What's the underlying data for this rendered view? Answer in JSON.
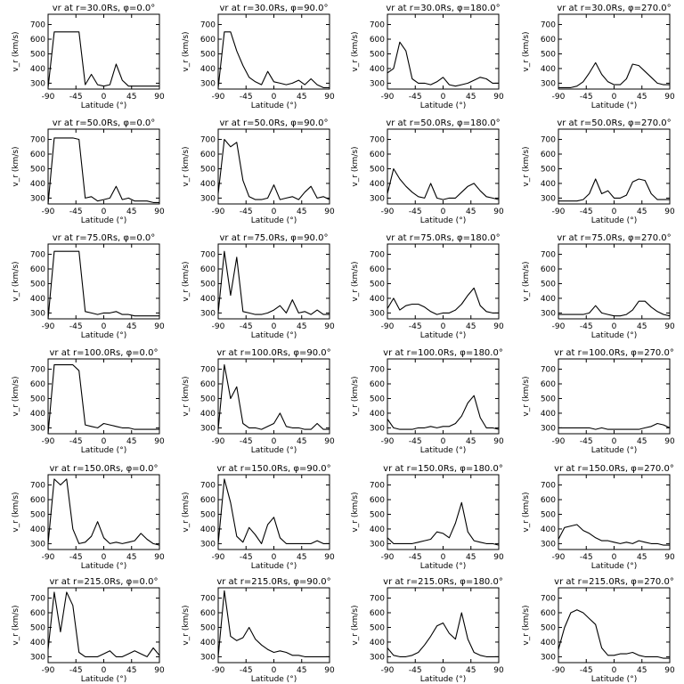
{
  "chart_data": {
    "type": "line",
    "xlabel": "Latitude (°)",
    "ylabel": "v_r (km/s)",
    "xlim": [
      -90,
      90
    ],
    "xticks": [
      -90,
      -45,
      0,
      45,
      90
    ],
    "lat": [
      -90,
      -80,
      -70,
      -60,
      -50,
      -40,
      -30,
      -20,
      -10,
      0,
      10,
      20,
      30,
      40,
      50,
      60,
      70,
      80,
      90
    ],
    "panels": [
      {
        "title": "vr at r=30.0Rs, φ=0.0°",
        "ylim": [
          260,
          770
        ],
        "yticks": [
          300,
          400,
          500,
          600,
          700
        ],
        "values": [
          270,
          650,
          650,
          650,
          650,
          650,
          290,
          360,
          290,
          280,
          290,
          430,
          320,
          280,
          280,
          280,
          280,
          280,
          280
        ]
      },
      {
        "title": "vr at r=30.0Rs, φ=90.0°",
        "ylim": [
          260,
          770
        ],
        "yticks": [
          300,
          400,
          500,
          600,
          700
        ],
        "values": [
          270,
          650,
          650,
          520,
          420,
          340,
          310,
          290,
          380,
          310,
          300,
          290,
          300,
          320,
          290,
          330,
          290,
          270,
          270
        ]
      },
      {
        "title": "vr at r=30.0Rs, φ=180.0°",
        "ylim": [
          260,
          770
        ],
        "yticks": [
          300,
          400,
          500,
          600,
          700
        ],
        "values": [
          370,
          400,
          580,
          520,
          330,
          300,
          300,
          290,
          310,
          340,
          290,
          280,
          290,
          300,
          320,
          340,
          330,
          300,
          300
        ]
      },
      {
        "title": "vr at r=30.0Rs, φ=270.0°",
        "ylim": [
          260,
          770
        ],
        "yticks": [
          300,
          400,
          500,
          600,
          700
        ],
        "values": [
          270,
          270,
          270,
          280,
          310,
          370,
          440,
          360,
          310,
          290,
          290,
          330,
          430,
          420,
          380,
          340,
          300,
          290,
          290
        ]
      },
      {
        "title": "vr at r=50.0Rs, φ=0.0°",
        "ylim": [
          260,
          770
        ],
        "yticks": [
          300,
          400,
          500,
          600,
          700
        ],
        "values": [
          250,
          710,
          710,
          710,
          710,
          700,
          300,
          310,
          280,
          290,
          300,
          380,
          290,
          300,
          280,
          280,
          280,
          270,
          270
        ]
      },
      {
        "title": "vr at r=50.0Rs, φ=90.0°",
        "ylim": [
          260,
          770
        ],
        "yticks": [
          300,
          400,
          500,
          600,
          700
        ],
        "values": [
          330,
          700,
          650,
          680,
          420,
          310,
          290,
          290,
          300,
          390,
          290,
          300,
          310,
          290,
          340,
          380,
          300,
          310,
          290
        ]
      },
      {
        "title": "vr at r=50.0Rs, φ=180.0°",
        "ylim": [
          260,
          770
        ],
        "yticks": [
          300,
          400,
          500,
          600,
          700
        ],
        "values": [
          330,
          500,
          430,
          380,
          340,
          310,
          300,
          400,
          300,
          290,
          300,
          300,
          340,
          380,
          400,
          350,
          310,
          300,
          290
        ]
      },
      {
        "title": "vr at r=50.0Rs, φ=270.0°",
        "ylim": [
          260,
          770
        ],
        "yticks": [
          300,
          400,
          500,
          600,
          700
        ],
        "values": [
          280,
          280,
          280,
          280,
          290,
          330,
          430,
          330,
          350,
          300,
          300,
          320,
          410,
          430,
          420,
          330,
          290,
          290,
          290
        ]
      },
      {
        "title": "vr at r=75.0Rs, φ=0.0°",
        "ylim": [
          260,
          770
        ],
        "yticks": [
          300,
          400,
          500,
          600,
          700
        ],
        "values": [
          250,
          720,
          720,
          720,
          720,
          720,
          310,
          300,
          290,
          300,
          300,
          310,
          290,
          290,
          280,
          280,
          280,
          280,
          280
        ]
      },
      {
        "title": "vr at r=75.0Rs, φ=90.0°",
        "ylim": [
          260,
          770
        ],
        "yticks": [
          300,
          400,
          500,
          600,
          700
        ],
        "values": [
          300,
          720,
          420,
          680,
          310,
          300,
          290,
          290,
          300,
          320,
          350,
          300,
          390,
          300,
          310,
          290,
          320,
          290,
          290
        ]
      },
      {
        "title": "vr at r=75.0Rs, φ=180.0°",
        "ylim": [
          260,
          770
        ],
        "yticks": [
          300,
          400,
          500,
          600,
          700
        ],
        "values": [
          330,
          400,
          320,
          350,
          360,
          360,
          340,
          310,
          290,
          300,
          300,
          320,
          360,
          420,
          470,
          350,
          310,
          300,
          300
        ]
      },
      {
        "title": "vr at r=75.0Rs, φ=270.0°",
        "ylim": [
          260,
          770
        ],
        "yticks": [
          300,
          400,
          500,
          600,
          700
        ],
        "values": [
          290,
          290,
          290,
          290,
          290,
          300,
          350,
          300,
          290,
          280,
          280,
          290,
          320,
          380,
          380,
          340,
          310,
          290,
          280
        ]
      },
      {
        "title": "vr at r=100.0Rs, φ=0.0°",
        "ylim": [
          260,
          770
        ],
        "yticks": [
          300,
          400,
          500,
          600,
          700
        ],
        "values": [
          250,
          730,
          730,
          730,
          730,
          690,
          320,
          310,
          300,
          330,
          320,
          310,
          300,
          300,
          290,
          290,
          290,
          290,
          290
        ]
      },
      {
        "title": "vr at r=100.0Rs, φ=90.0°",
        "ylim": [
          260,
          770
        ],
        "yticks": [
          300,
          400,
          500,
          600,
          700
        ],
        "values": [
          290,
          730,
          500,
          580,
          330,
          300,
          300,
          290,
          310,
          330,
          400,
          310,
          300,
          300,
          290,
          290,
          330,
          290,
          290
        ]
      },
      {
        "title": "vr at r=100.0Rs, φ=180.0°",
        "ylim": [
          260,
          770
        ],
        "yticks": [
          300,
          400,
          500,
          600,
          700
        ],
        "values": [
          360,
          300,
          290,
          290,
          290,
          300,
          300,
          310,
          300,
          310,
          310,
          330,
          380,
          470,
          520,
          370,
          300,
          300,
          290
        ]
      },
      {
        "title": "vr at r=100.0Rs, φ=270.0°",
        "ylim": [
          260,
          770
        ],
        "yticks": [
          300,
          400,
          500,
          600,
          700
        ],
        "values": [
          300,
          300,
          300,
          300,
          300,
          300,
          290,
          300,
          290,
          290,
          290,
          290,
          290,
          290,
          300,
          310,
          330,
          320,
          300
        ]
      },
      {
        "title": "vr at r=150.0Rs, φ=0.0°",
        "ylim": [
          260,
          770
        ],
        "yticks": [
          300,
          400,
          500,
          600,
          700
        ],
        "values": [
          300,
          740,
          700,
          740,
          400,
          300,
          310,
          350,
          450,
          340,
          300,
          310,
          300,
          310,
          320,
          370,
          330,
          300,
          290
        ]
      },
      {
        "title": "vr at r=150.0Rs, φ=90.0°",
        "ylim": [
          260,
          770
        ],
        "yticks": [
          300,
          400,
          500,
          600,
          700
        ],
        "values": [
          300,
          740,
          580,
          350,
          310,
          410,
          360,
          300,
          430,
          480,
          340,
          300,
          300,
          300,
          300,
          300,
          320,
          300,
          300
        ]
      },
      {
        "title": "vr at r=150.0Rs, φ=180.0°",
        "ylim": [
          260,
          770
        ],
        "yticks": [
          300,
          400,
          500,
          600,
          700
        ],
        "values": [
          340,
          300,
          300,
          300,
          300,
          310,
          320,
          330,
          380,
          370,
          340,
          440,
          580,
          380,
          320,
          310,
          300,
          300,
          290
        ]
      },
      {
        "title": "vr at r=150.0Rs, φ=270.0°",
        "ylim": [
          260,
          770
        ],
        "yticks": [
          300,
          400,
          500,
          600,
          700
        ],
        "values": [
          330,
          410,
          420,
          430,
          390,
          370,
          340,
          320,
          320,
          310,
          300,
          310,
          300,
          320,
          310,
          300,
          300,
          290,
          290
        ]
      },
      {
        "title": "vr at r=215.0Rs, φ=0.0°",
        "ylim": [
          260,
          770
        ],
        "yticks": [
          300,
          400,
          500,
          600,
          700
        ],
        "values": [
          350,
          740,
          470,
          740,
          650,
          330,
          300,
          300,
          300,
          320,
          340,
          300,
          300,
          320,
          340,
          320,
          300,
          360,
          310
        ]
      },
      {
        "title": "vr at r=215.0Rs, φ=90.0°",
        "ylim": [
          260,
          770
        ],
        "yticks": [
          300,
          400,
          500,
          600,
          700
        ],
        "values": [
          300,
          750,
          440,
          410,
          430,
          500,
          420,
          380,
          350,
          330,
          340,
          330,
          310,
          310,
          300,
          300,
          300,
          300,
          300
        ]
      },
      {
        "title": "vr at r=215.0Rs, φ=180.0°",
        "ylim": [
          260,
          770
        ],
        "yticks": [
          300,
          400,
          500,
          600,
          700
        ],
        "values": [
          360,
          310,
          300,
          300,
          310,
          330,
          380,
          440,
          510,
          530,
          460,
          420,
          600,
          420,
          330,
          310,
          300,
          300,
          300
        ]
      },
      {
        "title": "vr at r=215.0Rs, φ=270.0°",
        "ylim": [
          260,
          770
        ],
        "yticks": [
          300,
          400,
          500,
          600,
          700
        ],
        "values": [
          350,
          500,
          600,
          620,
          600,
          560,
          520,
          360,
          310,
          310,
          320,
          320,
          330,
          310,
          300,
          300,
          300,
          290,
          290
        ]
      }
    ]
  }
}
